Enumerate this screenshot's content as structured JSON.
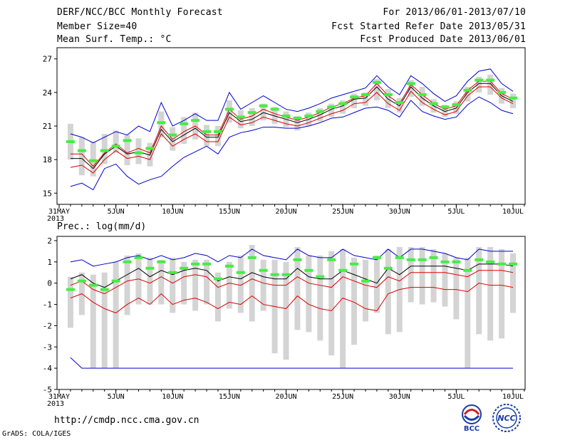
{
  "header": {
    "title": "DERF/NCC/BCC Monthly Forecast",
    "member_size": "Member Size=40",
    "variable_label": "Mean Surf. Temp.: °C",
    "forecast_period": "For 2013/06/01-2013/07/10",
    "fcst_started": "Fcst Started Refer Date 2013/05/31",
    "fcst_produced": "Fcst Produced Date 2013/06/01"
  },
  "footer": {
    "url": "http://cmdp.ncc.cma.gov.cn",
    "grads_label": "GrADS: COLA/IGES",
    "logo_bcc_text": "BCC",
    "logo_ncc_text": "NCC"
  },
  "colors": {
    "envelope": "#0000cc",
    "ensemble_mean": "#000000",
    "lower_line": "#dd0000",
    "observed": "#44ee44",
    "box": "#d4d4d4"
  },
  "chart_data": [
    {
      "type": "line",
      "title": "Mean Surf. Temp.: °C",
      "ylim": [
        14,
        28
      ],
      "yticks": [
        15,
        18,
        21,
        24,
        27
      ],
      "xtick_labels": [
        "31MAY\n2013",
        "5JUN",
        "10JUN",
        "15JUN",
        "20JUN",
        "25JUN",
        "30JUN",
        "5JUL",
        "10JUL"
      ],
      "xtick_days": [
        0,
        5,
        10,
        15,
        20,
        25,
        30,
        35,
        40
      ],
      "days": [
        1,
        2,
        3,
        4,
        5,
        6,
        7,
        8,
        9,
        10,
        11,
        12,
        13,
        14,
        15,
        16,
        17,
        18,
        19,
        20,
        21,
        22,
        23,
        24,
        25,
        26,
        27,
        28,
        29,
        30,
        31,
        32,
        33,
        34,
        35,
        36,
        37,
        38,
        39,
        40
      ],
      "series": [
        {
          "name": "max",
          "color_key": "envelope",
          "values": [
            20.3,
            20.0,
            19.5,
            20.0,
            20.5,
            20.2,
            21.0,
            20.5,
            23.1,
            21.0,
            21.5,
            22.1,
            21.5,
            21.5,
            24.0,
            22.5,
            23.1,
            23.7,
            23.1,
            22.5,
            22.3,
            22.6,
            23.0,
            23.5,
            23.8,
            24.1,
            24.4,
            25.5,
            24.5,
            23.8,
            25.5,
            24.8,
            23.9,
            23.2,
            23.7,
            25.0,
            25.9,
            26.1,
            24.8,
            24.1
          ]
        },
        {
          "name": "upper_red",
          "color_key": "lower_line",
          "values": [
            18.5,
            18.5,
            17.4,
            18.6,
            19.4,
            18.6,
            19.0,
            18.6,
            21.0,
            19.8,
            20.5,
            21.0,
            20.2,
            20.2,
            22.5,
            21.6,
            21.9,
            22.5,
            22.1,
            21.8,
            21.5,
            21.8,
            22.2,
            22.7,
            23.0,
            23.5,
            23.7,
            24.8,
            23.7,
            23.0,
            24.7,
            23.8,
            23.0,
            22.5,
            22.8,
            24.2,
            25.0,
            25.0,
            23.9,
            23.4
          ]
        },
        {
          "name": "ensemble_mean",
          "color_key": "ensemble_mean",
          "values": [
            18.1,
            18.1,
            17.2,
            18.5,
            19.2,
            18.5,
            18.7,
            18.4,
            20.7,
            19.6,
            20.2,
            20.8,
            20.0,
            20.0,
            22.2,
            21.4,
            21.6,
            22.2,
            21.9,
            21.6,
            21.3,
            21.6,
            22.0,
            22.5,
            22.8,
            23.4,
            23.5,
            24.5,
            23.4,
            22.8,
            24.5,
            23.5,
            22.8,
            22.3,
            22.6,
            24.0,
            24.8,
            24.8,
            23.7,
            23.2
          ]
        },
        {
          "name": "lower_red",
          "color_key": "lower_line",
          "values": [
            17.3,
            17.5,
            16.8,
            18.0,
            18.8,
            18.1,
            18.3,
            18.0,
            20.3,
            19.2,
            19.8,
            20.3,
            19.6,
            19.6,
            21.8,
            21.1,
            21.3,
            21.8,
            21.5,
            21.2,
            21.0,
            21.3,
            21.7,
            22.1,
            22.4,
            23.0,
            23.1,
            24.0,
            23.0,
            22.4,
            24.1,
            23.1,
            22.5,
            22.0,
            22.3,
            23.7,
            24.5,
            24.5,
            23.5,
            23.0
          ]
        },
        {
          "name": "min",
          "color_key": "envelope",
          "values": [
            15.6,
            15.9,
            15.3,
            17.2,
            17.6,
            16.5,
            15.8,
            16.2,
            16.5,
            17.4,
            18.2,
            18.7,
            19.2,
            18.5,
            20.0,
            20.4,
            20.6,
            20.9,
            20.9,
            20.8,
            20.8,
            21.0,
            21.3,
            21.7,
            21.8,
            22.2,
            22.6,
            22.7,
            22.4,
            21.8,
            23.3,
            22.3,
            21.9,
            21.6,
            21.8,
            22.9,
            23.6,
            23.1,
            22.4,
            22.1
          ]
        },
        {
          "name": "observed",
          "color_key": "observed",
          "style": "dash",
          "values": [
            19.6,
            18.8,
            17.9,
            18.8,
            19.2,
            19.7,
            18.6,
            19.0,
            21.3,
            20.2,
            21.2,
            21.5,
            20.5,
            20.5,
            22.5,
            21.8,
            22.2,
            22.8,
            22.5,
            21.9,
            21.7,
            21.9,
            22.3,
            22.7,
            23.0,
            23.6,
            23.8,
            24.9,
            23.8,
            23.1,
            24.8,
            23.8,
            23.0,
            22.7,
            22.9,
            24.2,
            25.1,
            25.1,
            24.0,
            23.5
          ]
        }
      ],
      "boxes": {
        "low": [
          18.0,
          16.6,
          16.5,
          17.6,
          18.6,
          17.5,
          17.6,
          17.4,
          20.0,
          18.8,
          19.4,
          19.8,
          19.2,
          19.2,
          21.3,
          20.8,
          21.0,
          21.5,
          21.2,
          20.9,
          20.6,
          21.0,
          21.4,
          21.8,
          22.1,
          22.6,
          22.8,
          23.3,
          22.6,
          22.2,
          23.6,
          22.8,
          22.2,
          21.8,
          22.1,
          23.2,
          24.0,
          23.8,
          23.0,
          22.6
        ],
        "high": [
          21.2,
          20.0,
          19.6,
          20.3,
          20.6,
          20.2,
          19.9,
          19.5,
          22.3,
          20.9,
          21.8,
          22.2,
          21.1,
          21.0,
          23.3,
          22.4,
          22.6,
          23.0,
          22.7,
          22.3,
          21.9,
          22.2,
          22.6,
          23.0,
          23.3,
          23.9,
          24.0,
          25.2,
          24.3,
          23.5,
          25.1,
          24.5,
          23.4,
          22.9,
          23.2,
          24.5,
          25.4,
          25.6,
          24.4,
          23.9
        ]
      }
    },
    {
      "type": "line",
      "title": "Prec.: log(mm/d)",
      "ylim": [
        -5,
        2.2
      ],
      "yticks": [
        -5,
        -4,
        -3,
        -2,
        -1,
        0,
        1,
        2
      ],
      "xtick_labels": [
        "31MAY\n2013",
        "5JUN",
        "10JUN",
        "15JUN",
        "20JUN",
        "25JUN",
        "30JUN",
        "5JUL",
        "10JUL"
      ],
      "xtick_days": [
        0,
        5,
        10,
        15,
        20,
        25,
        30,
        35,
        40
      ],
      "days": [
        1,
        2,
        3,
        4,
        5,
        6,
        7,
        8,
        9,
        10,
        11,
        12,
        13,
        14,
        15,
        16,
        17,
        18,
        19,
        20,
        21,
        22,
        23,
        24,
        25,
        26,
        27,
        28,
        29,
        30,
        31,
        32,
        33,
        34,
        35,
        36,
        37,
        38,
        39,
        40
      ],
      "series": [
        {
          "name": "max",
          "color_key": "envelope",
          "values": [
            1.0,
            1.1,
            0.8,
            0.9,
            1.0,
            1.2,
            1.3,
            1.1,
            1.3,
            1.1,
            1.2,
            1.4,
            1.3,
            1.0,
            1.3,
            1.2,
            1.6,
            1.3,
            1.2,
            1.1,
            1.6,
            1.3,
            1.2,
            1.2,
            1.6,
            1.3,
            1.2,
            1.1,
            1.6,
            1.2,
            1.6,
            1.6,
            1.5,
            1.4,
            1.2,
            1.1,
            1.6,
            1.5,
            1.5,
            1.5
          ]
        },
        {
          "name": "ensemble_mean",
          "color_key": "ensemble_mean",
          "values": [
            0.2,
            0.4,
            0.0,
            -0.2,
            0.1,
            0.4,
            0.7,
            0.3,
            0.6,
            0.4,
            0.6,
            0.7,
            0.6,
            0.1,
            0.3,
            0.2,
            0.5,
            0.3,
            0.2,
            0.2,
            0.7,
            0.3,
            0.2,
            0.2,
            0.6,
            0.4,
            0.2,
            0.0,
            0.7,
            0.4,
            0.8,
            0.8,
            0.8,
            0.8,
            0.7,
            0.6,
            0.9,
            0.9,
            0.9,
            0.8
          ]
        },
        {
          "name": "upper_red",
          "color_key": "lower_line",
          "values": [
            -0.1,
            0.1,
            -0.3,
            -0.5,
            -0.2,
            0.1,
            0.2,
            0.0,
            0.3,
            0.0,
            0.3,
            0.4,
            0.3,
            -0.2,
            0.0,
            -0.1,
            0.2,
            0.0,
            -0.1,
            -0.1,
            0.3,
            0.0,
            -0.1,
            -0.2,
            0.3,
            0.1,
            -0.1,
            -0.2,
            0.3,
            0.1,
            0.5,
            0.5,
            0.5,
            0.5,
            0.4,
            0.3,
            0.6,
            0.6,
            0.6,
            0.5
          ]
        },
        {
          "name": "lower_red",
          "color_key": "lower_line",
          "values": [
            -0.7,
            -0.5,
            -0.9,
            -1.2,
            -1.4,
            -1.0,
            -0.7,
            -1.0,
            -0.5,
            -1.0,
            -0.8,
            -0.7,
            -0.9,
            -1.2,
            -0.9,
            -1.0,
            -0.6,
            -1.0,
            -1.1,
            -1.2,
            -0.6,
            -1.0,
            -1.2,
            -1.3,
            -0.7,
            -0.9,
            -1.2,
            -1.3,
            -0.5,
            -0.3,
            -0.2,
            -0.2,
            -0.2,
            -0.3,
            -0.3,
            -0.4,
            0.0,
            -0.1,
            -0.1,
            -0.2
          ]
        },
        {
          "name": "min",
          "color_key": "envelope",
          "values": [
            -3.5,
            -4.0,
            -4.0,
            -4.0,
            -4.0,
            -4.0,
            -4.0,
            -4.0,
            -4.0,
            -4.0,
            -4.0,
            -4.0,
            -4.0,
            -4.0,
            -4.0,
            -4.0,
            -4.0,
            -4.0,
            -4.0,
            -4.0,
            -4.0,
            -4.0,
            -4.0,
            -4.0,
            -4.0,
            -4.0,
            -4.0,
            -4.0,
            -4.0,
            -4.0,
            -4.0,
            -4.0,
            -4.0,
            -4.0,
            -4.0,
            -4.0,
            -4.0,
            -4.0,
            -4.0,
            -4.0
          ]
        },
        {
          "name": "observed",
          "color_key": "observed",
          "style": "dash",
          "values": [
            -0.3,
            0.1,
            -0.1,
            -0.3,
            0.1,
            1.0,
            1.2,
            0.7,
            1.0,
            0.5,
            0.7,
            0.9,
            0.9,
            0.2,
            0.8,
            0.5,
            1.2,
            0.6,
            0.4,
            0.4,
            1.1,
            0.6,
            0.3,
            1.1,
            0.6,
            0.9,
            0.1,
            1.2,
            0.7,
            1.2,
            1.1,
            1.1,
            1.2,
            1.0,
            1.0,
            0.6,
            1.1,
            1.0,
            0.9,
            0.9
          ]
        }
      ],
      "boxes": {
        "low": [
          -2.1,
          -1.5,
          -4.0,
          -4.0,
          -4.0,
          -1.5,
          -1.0,
          -1.0,
          -1.0,
          -1.4,
          -1.0,
          -1.3,
          -1.0,
          -1.8,
          -1.2,
          -1.4,
          -1.8,
          -1.3,
          -3.3,
          -3.6,
          -2.2,
          -2.3,
          -2.7,
          -3.4,
          -4.0,
          -2.9,
          -1.8,
          -1.4,
          -2.4,
          -2.3,
          -0.9,
          -1.0,
          -0.9,
          -1.1,
          -1.7,
          -4.0,
          -2.4,
          -2.7,
          -2.6,
          -1.4
        ],
        "high": [
          0.3,
          0.5,
          0.4,
          0.5,
          1.0,
          1.3,
          1.4,
          1.2,
          1.1,
          1.2,
          1.0,
          1.1,
          1.1,
          0.5,
          1.0,
          1.3,
          1.8,
          1.1,
          1.1,
          1.0,
          1.7,
          1.3,
          1.3,
          1.5,
          1.6,
          1.2,
          1.1,
          1.3,
          1.6,
          1.7,
          1.7,
          1.7,
          1.6,
          1.4,
          1.2,
          1.2,
          1.7,
          1.7,
          1.6,
          1.4
        ]
      }
    }
  ]
}
